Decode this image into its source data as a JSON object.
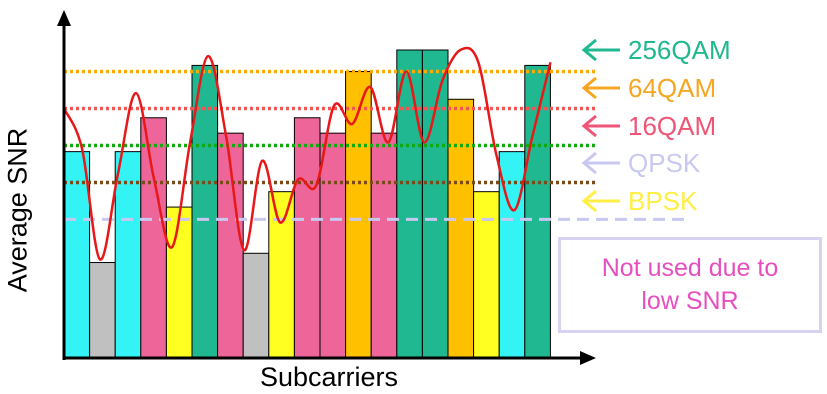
{
  "chart_data": {
    "type": "bar",
    "xlabel": "Subcarriers",
    "ylabel": "Average SNR",
    "ylim": [
      0,
      100
    ],
    "values": [
      67,
      31,
      67,
      78,
      49,
      95,
      73,
      34,
      54,
      78,
      73,
      93,
      73,
      100,
      100,
      84,
      54,
      67,
      95
    ],
    "bar_colors": [
      "#33f3f5",
      "#c0c0c0",
      "#33f3f5",
      "#ee6699",
      "#ffff22",
      "#1fb890",
      "#ee6699",
      "#c0c0c0",
      "#ffff22",
      "#ee6699",
      "#ee6699",
      "#ffc000",
      "#ee6699",
      "#1fb890",
      "#1fb890",
      "#ffc000",
      "#ffff22",
      "#33f3f5",
      "#1fb890"
    ],
    "snr_curve": [
      81,
      68,
      32,
      60,
      86,
      58,
      36,
      70,
      98,
      72,
      35,
      64,
      44,
      58,
      56,
      82,
      76,
      88,
      70,
      93,
      70,
      90,
      100,
      96,
      66,
      48,
      72,
      96
    ],
    "thresholds": [
      {
        "name": "256QAM",
        "value": 93,
        "line_color": "#ffaa00",
        "label_color": "#1fb890",
        "style": "dotted"
      },
      {
        "name": "64QAM",
        "value": 81,
        "line_color": "#f25555",
        "label_color": "#f5a623",
        "style": "dotted"
      },
      {
        "name": "16QAM",
        "value": 69,
        "line_color": "#11aa11",
        "label_color": "#ee5577",
        "style": "dotted"
      },
      {
        "name": "QPSK",
        "value": 57,
        "line_color": "#7a4a1a",
        "label_color": "#c8c8f0",
        "style": "dotted"
      },
      {
        "name": "BPSK",
        "value": 45,
        "line_color": "#c8c8f0",
        "label_color": "#ffee44",
        "style": "dashed"
      }
    ]
  },
  "legend": [
    {
      "label": "256QAM",
      "color": "#1fb890"
    },
    {
      "label": "64QAM",
      "color": "#f5a623"
    },
    {
      "label": "16QAM",
      "color": "#ee5577"
    },
    {
      "label": "QPSK",
      "color": "#c8c8f0"
    },
    {
      "label": "BPSK",
      "color": "#ffee44"
    }
  ],
  "note": {
    "text": "Not  used due to\nlow SNR"
  }
}
